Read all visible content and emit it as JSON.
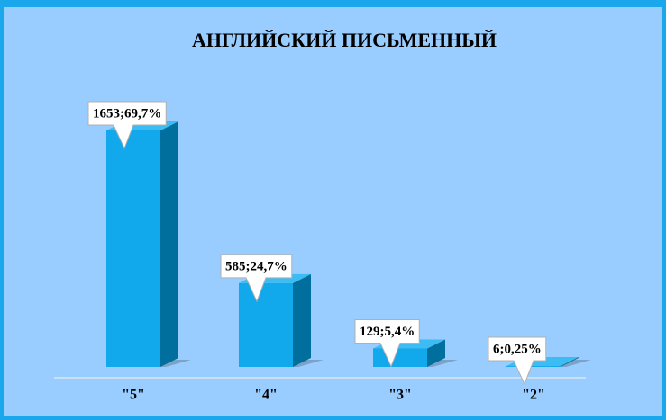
{
  "chart_data": {
    "type": "bar",
    "title": "АНГЛИЙСКИЙ ПИСЬМЕННЫЙ",
    "categories": [
      "\"5\"",
      "\"4\"",
      "\"3\"",
      "\"2\""
    ],
    "values": [
      1653,
      585,
      129,
      6
    ],
    "value_labels": [
      "1653;69,7%",
      "585;24,7%",
      "129;5,4%",
      "6;0,25%"
    ],
    "color": "#12a9ec"
  }
}
